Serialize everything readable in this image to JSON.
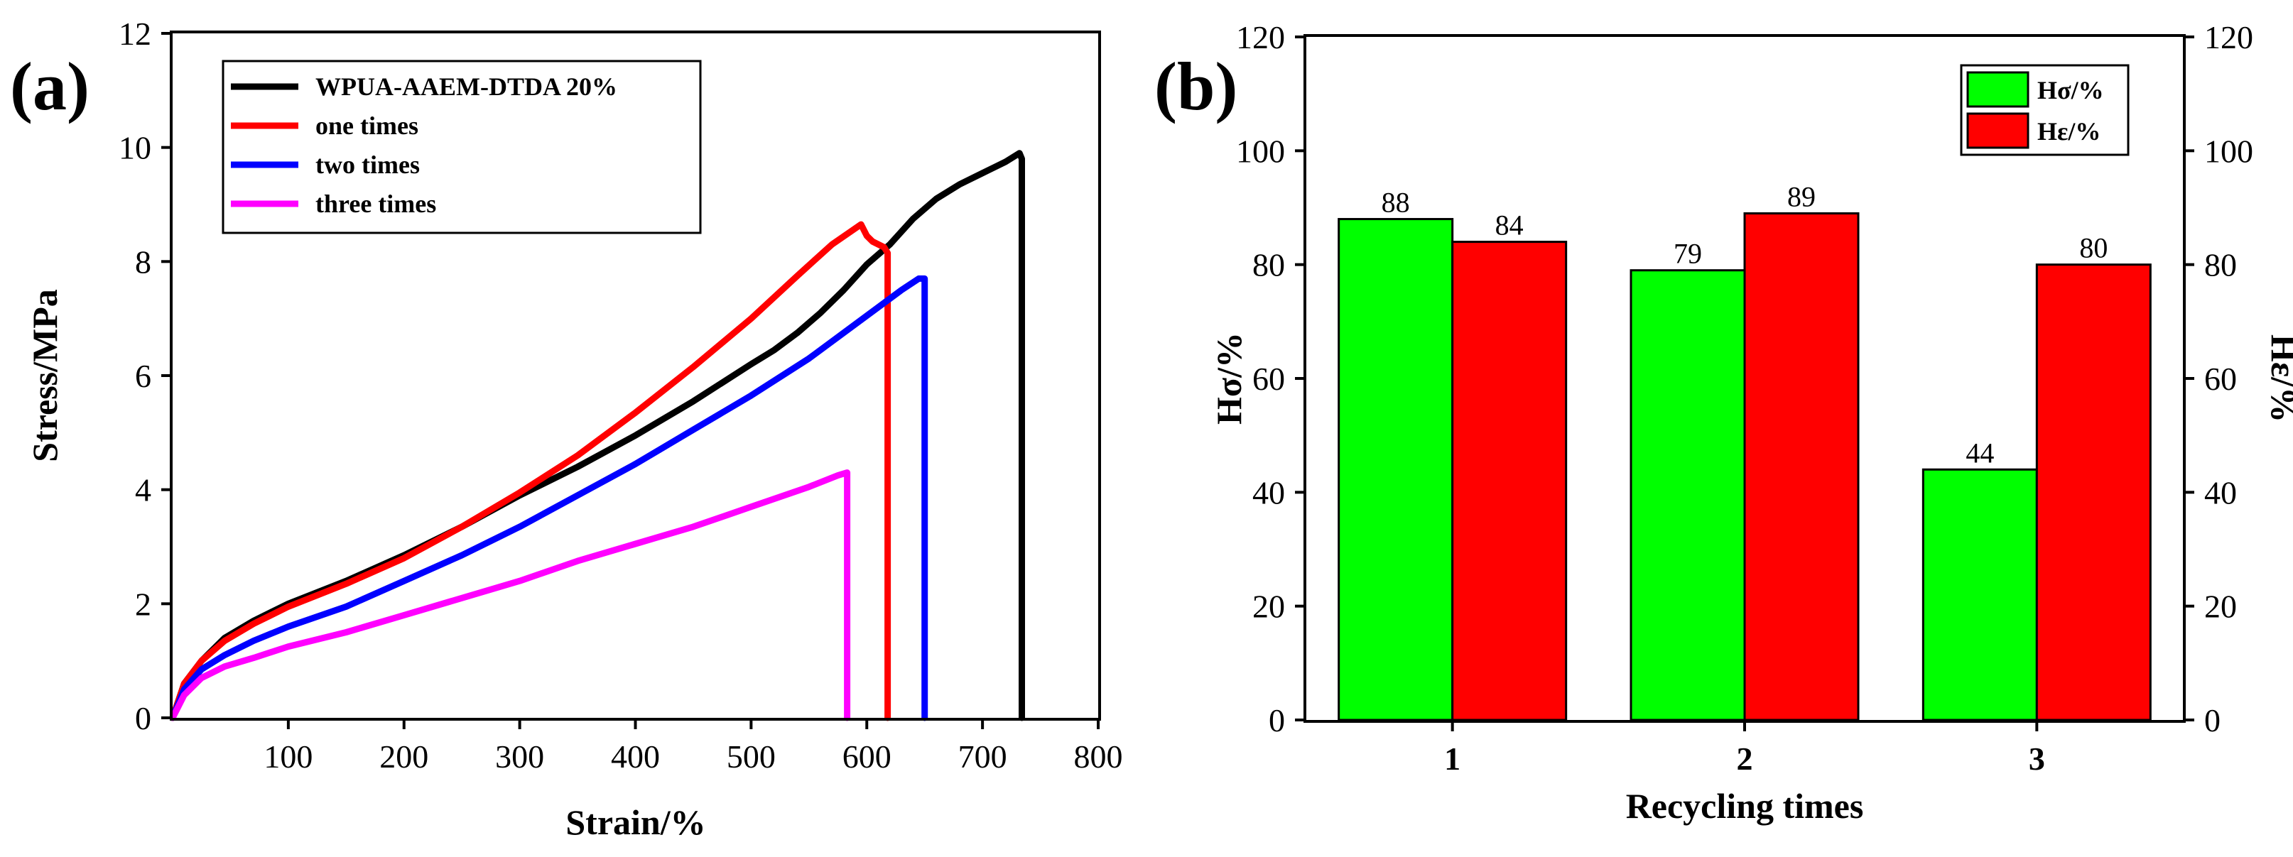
{
  "chart_data": [
    {
      "type": "line",
      "panel_label": "(a)",
      "xlabel": "Strain/%",
      "ylabel": "Stress/MPa",
      "xlim": [
        0,
        800
      ],
      "ylim": [
        0,
        12
      ],
      "xticks": [
        100,
        200,
        300,
        400,
        500,
        600,
        700,
        800
      ],
      "yticks": [
        0,
        2,
        4,
        6,
        8,
        10,
        12
      ],
      "grid": false,
      "legend_position": "top-left",
      "series": [
        {
          "name": "WPUA-AAEM-DTDA 20%",
          "color": "#000000",
          "x": [
            0,
            10,
            25,
            45,
            70,
            100,
            150,
            200,
            250,
            300,
            350,
            400,
            450,
            500,
            520,
            540,
            560,
            580,
            600,
            620,
            640,
            660,
            680,
            700,
            720,
            732,
            734,
            734
          ],
          "y": [
            0,
            0.6,
            1.0,
            1.4,
            1.7,
            2.0,
            2.4,
            2.85,
            3.35,
            3.9,
            4.4,
            4.95,
            5.55,
            6.2,
            6.45,
            6.75,
            7.1,
            7.5,
            7.95,
            8.3,
            8.75,
            9.1,
            9.35,
            9.55,
            9.75,
            9.9,
            9.8,
            0
          ]
        },
        {
          "name": "one times",
          "color": "#ff0000",
          "x": [
            0,
            10,
            25,
            45,
            70,
            100,
            150,
            200,
            250,
            300,
            350,
            400,
            450,
            500,
            540,
            570,
            595,
            600,
            605,
            615,
            618,
            618
          ],
          "y": [
            0,
            0.6,
            1.0,
            1.35,
            1.65,
            1.95,
            2.35,
            2.8,
            3.35,
            3.95,
            4.6,
            5.35,
            6.15,
            7.0,
            7.75,
            8.3,
            8.65,
            8.45,
            8.35,
            8.25,
            8.15,
            0
          ]
        },
        {
          "name": "two times",
          "color": "#0000ff",
          "x": [
            0,
            10,
            25,
            45,
            70,
            100,
            150,
            200,
            250,
            300,
            350,
            400,
            450,
            500,
            550,
            600,
            630,
            645,
            650,
            650
          ],
          "y": [
            0,
            0.5,
            0.85,
            1.1,
            1.35,
            1.6,
            1.95,
            2.4,
            2.85,
            3.35,
            3.9,
            4.45,
            5.05,
            5.65,
            6.3,
            7.05,
            7.5,
            7.7,
            7.7,
            0
          ]
        },
        {
          "name": "three times",
          "color": "#ff00ff",
          "x": [
            0,
            10,
            25,
            45,
            70,
            100,
            150,
            200,
            250,
            300,
            350,
            400,
            450,
            500,
            550,
            575,
            583,
            583
          ],
          "y": [
            0,
            0.4,
            0.7,
            0.9,
            1.05,
            1.25,
            1.5,
            1.8,
            2.1,
            2.4,
            2.75,
            3.05,
            3.35,
            3.7,
            4.05,
            4.25,
            4.3,
            0
          ]
        }
      ]
    },
    {
      "type": "bar",
      "panel_label": "(b)",
      "xlabel": "Recycling times",
      "ylabel_left": "Hσ/%",
      "ylabel_right": "Hε/%",
      "ylim": [
        0,
        120
      ],
      "yticks": [
        0,
        20,
        40,
        60,
        80,
        100,
        120
      ],
      "categories": [
        "1",
        "2",
        "3"
      ],
      "grid": false,
      "legend_position": "top-right",
      "series": [
        {
          "name": "Hσ/%",
          "color": "#00ff00",
          "values": [
            88,
            79,
            44
          ]
        },
        {
          "name": "Hε/%",
          "color": "#ff0000",
          "values": [
            84,
            89,
            80
          ]
        }
      ]
    }
  ]
}
